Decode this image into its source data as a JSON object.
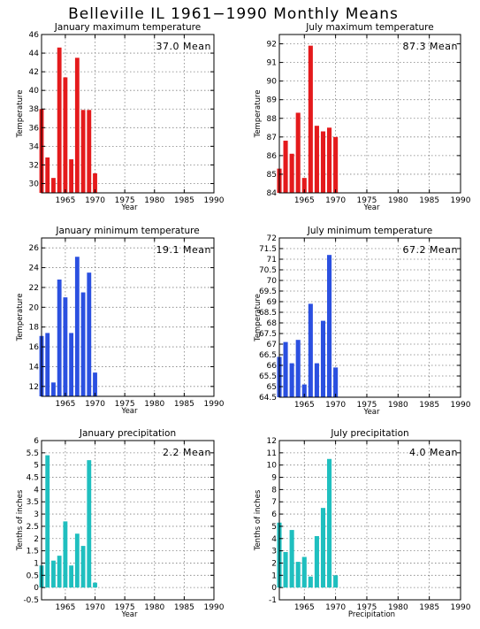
{
  "title": "Belleville IL   1961−1990 Monthly Means",
  "chart_data": [
    {
      "type": "bar",
      "title": "January maximum temperature",
      "mean_label": "37.0 Mean",
      "xlabel": "Year",
      "ylabel": "Temperature",
      "color": "#e41a1c",
      "xlim": [
        1961,
        1990
      ],
      "ylim": [
        29,
        46
      ],
      "yticks": [
        30,
        32,
        34,
        36,
        38,
        40,
        42,
        44,
        46
      ],
      "yticklabels": [
        "30",
        "32",
        "34",
        "36",
        "38",
        "40",
        "42",
        "44",
        "46"
      ],
      "xticks": [
        1965,
        1970,
        1975,
        1980,
        1985,
        1990
      ],
      "xticklabels": [
        "1965",
        "1970",
        "1975",
        "1980",
        "1985",
        "1990"
      ],
      "x": [
        1961,
        1962,
        1963,
        1964,
        1965,
        1966,
        1967,
        1968,
        1969,
        1970
      ],
      "values": [
        38.0,
        32.8,
        30.6,
        44.6,
        41.4,
        32.6,
        43.5,
        37.9,
        37.9,
        31.1
      ],
      "grid": true
    },
    {
      "type": "bar",
      "title": "July maximum temperature",
      "mean_label": "87.3 Mean",
      "xlabel": "Year",
      "ylabel": "Temperature",
      "color": "#e41a1c",
      "xlim": [
        1961,
        1990
      ],
      "ylim": [
        84,
        92.5
      ],
      "yticks": [
        84,
        85,
        86,
        87,
        88,
        89,
        90,
        91,
        92
      ],
      "yticklabels": [
        "84",
        "85",
        "86",
        "87",
        "88",
        "89",
        "90",
        "91",
        "92"
      ],
      "xticks": [
        1965,
        1970,
        1975,
        1980,
        1985,
        1990
      ],
      "xticklabels": [
        "1965",
        "1970",
        "1975",
        "1980",
        "1985",
        "1990"
      ],
      "x": [
        1961,
        1962,
        1963,
        1964,
        1965,
        1966,
        1967,
        1968,
        1969,
        1970
      ],
      "values": [
        85.3,
        86.8,
        86.1,
        88.3,
        84.8,
        91.9,
        87.6,
        87.3,
        87.5,
        87.0
      ],
      "grid": true
    },
    {
      "type": "bar",
      "title": "January minimum temperature",
      "mean_label": "19.1 Mean",
      "xlabel": "Year",
      "ylabel": "Temperature",
      "color": "#2b50e0",
      "xlim": [
        1961,
        1990
      ],
      "ylim": [
        11,
        27
      ],
      "yticks": [
        12,
        14,
        16,
        18,
        20,
        22,
        24,
        26
      ],
      "yticklabels": [
        "12",
        "14",
        "16",
        "18",
        "20",
        "22",
        "24",
        "26"
      ],
      "xticks": [
        1965,
        1970,
        1975,
        1980,
        1985,
        1990
      ],
      "xticklabels": [
        "1965",
        "1970",
        "1975",
        "1980",
        "1985",
        "1990"
      ],
      "x": [
        1961,
        1962,
        1963,
        1964,
        1965,
        1966,
        1967,
        1968,
        1969,
        1970
      ],
      "values": [
        17.1,
        17.4,
        12.4,
        22.8,
        21.0,
        17.4,
        25.1,
        21.5,
        23.5,
        13.4
      ],
      "grid": true
    },
    {
      "type": "bar",
      "title": "July minimum temperature",
      "mean_label": "67.2 Mean",
      "xlabel": "Year",
      "ylabel": "Temperature",
      "color": "#2b50e0",
      "xlim": [
        1961,
        1990
      ],
      "ylim": [
        64.5,
        72
      ],
      "yticks": [
        64.5,
        65,
        65.5,
        66,
        66.5,
        67,
        67.5,
        68,
        68.5,
        69,
        69.5,
        70,
        70.5,
        71,
        71.5,
        72
      ],
      "yticklabels": [
        "64.5",
        "65",
        "65.5",
        "66",
        "66.5",
        "67",
        "67.5",
        "68",
        "68.5",
        "69",
        "69.5",
        "70",
        "70.5",
        "71",
        "71.5",
        "72"
      ],
      "xticks": [
        1965,
        1970,
        1975,
        1980,
        1985,
        1990
      ],
      "xticklabels": [
        "1965",
        "1970",
        "1975",
        "1980",
        "1985",
        "1990"
      ],
      "x": [
        1961,
        1962,
        1963,
        1964,
        1965,
        1966,
        1967,
        1968,
        1969,
        1970
      ],
      "values": [
        66.4,
        67.1,
        66.1,
        67.2,
        65.1,
        68.9,
        66.1,
        68.1,
        71.2,
        65.9
      ],
      "grid": true
    },
    {
      "type": "bar",
      "title": "January precipitation",
      "mean_label": "2.2 Mean",
      "xlabel": "Year",
      "ylabel": "Tenths of inches",
      "color": "#1fbfbf",
      "xlim": [
        1961,
        1990
      ],
      "ylim": [
        -0.5,
        6
      ],
      "yticks": [
        -0.5,
        0,
        0.5,
        1,
        1.5,
        2,
        2.5,
        3,
        3.5,
        4,
        4.5,
        5,
        5.5,
        6
      ],
      "yticklabels": [
        "-0.5",
        "0",
        "0.5",
        "1",
        "1.5",
        "2",
        "2.5",
        "3",
        "3.5",
        "4",
        "4.5",
        "5",
        "5.5",
        "6"
      ],
      "xticks": [
        1965,
        1970,
        1975,
        1980,
        1985,
        1990
      ],
      "xticklabels": [
        "1965",
        "1970",
        "1975",
        "1980",
        "1985",
        "1990"
      ],
      "x": [
        1961,
        1962,
        1963,
        1964,
        1965,
        1966,
        1967,
        1968,
        1969,
        1970
      ],
      "values": [
        0.9,
        5.4,
        1.1,
        1.3,
        2.7,
        0.9,
        2.2,
        1.7,
        5.2,
        0.2
      ],
      "grid": true
    },
    {
      "type": "bar",
      "title": "July precipitation",
      "mean_label": "4.0 Mean",
      "xlabel": "Precipitation",
      "ylabel": "Tenths of inches",
      "color": "#1fbfbf",
      "xlim": [
        1961,
        1990
      ],
      "ylim": [
        -1,
        12
      ],
      "yticks": [
        -1,
        0,
        1,
        2,
        3,
        4,
        5,
        6,
        7,
        8,
        9,
        10,
        11,
        12
      ],
      "yticklabels": [
        "-1",
        "0",
        "1",
        "2",
        "3",
        "4",
        "5",
        "6",
        "7",
        "8",
        "9",
        "10",
        "11",
        "12"
      ],
      "xticks": [
        1965,
        1970,
        1975,
        1980,
        1985,
        1990
      ],
      "xticklabels": [
        "1965",
        "1970",
        "1975",
        "1980",
        "1985",
        "1990"
      ],
      "x": [
        1961,
        1962,
        1963,
        1964,
        1965,
        1966,
        1967,
        1968,
        1969,
        1970
      ],
      "values": [
        5.3,
        2.9,
        4.7,
        2.1,
        2.5,
        0.9,
        4.2,
        6.5,
        10.5,
        1.0
      ],
      "grid": true
    }
  ]
}
